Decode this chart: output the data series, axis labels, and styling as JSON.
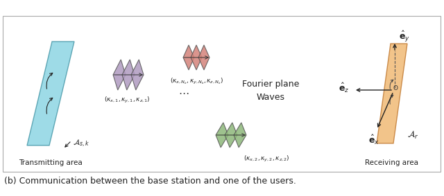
{
  "bg_color": "#ffffff",
  "border_color": "#aaaaaa",
  "caption": "(b) Communication between the base station and one of the users.",
  "tx_color": "#7ecfe0",
  "rx_color": "#f0b870",
  "wave1_color": "#b09ac0",
  "wave2_color": "#8db87a",
  "wave3_color": "#d4837a",
  "fourier_label": "Fourier plane\nWaves",
  "label1": "$(\\kappa_{x,1}, \\kappa_{y,1}, \\kappa_{z,1})$",
  "label2": "$(\\kappa_{x,2}, \\kappa_{y,2}, \\kappa_{z,2})$",
  "label3": "$(\\kappa_{x,N_k}, \\kappa_{y,N_k}, \\kappa_{z,N_k})$",
  "tx_label": "$\\mathcal{A}_{s,k}$",
  "rx_label": "$\\mathcal{A}_r$",
  "ey_label": "$\\hat{\\mathbf{e}}_y$",
  "ez_label": "$\\hat{\\mathbf{e}}_z$",
  "ex_label": "$\\hat{\\mathbf{e}}_x$",
  "tx_area": "Transmitting area",
  "rx_area": "Receiving area"
}
